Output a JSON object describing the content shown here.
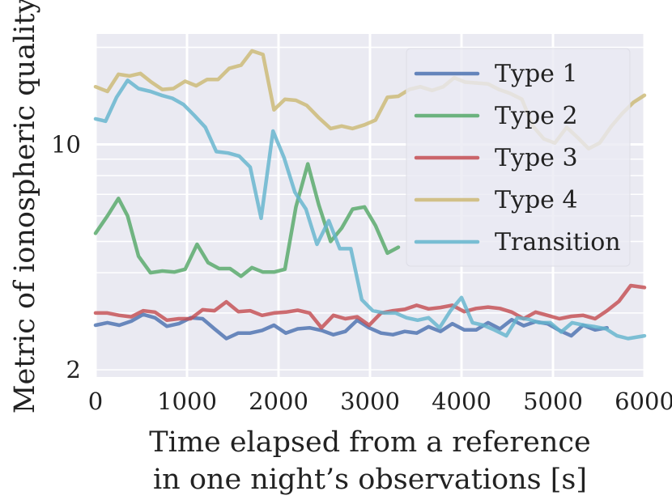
{
  "chart_data": {
    "type": "line",
    "xlabel_lines": [
      "Time elapsed from a reference",
      "in one night’s observations [s]"
    ],
    "ylabel": "Metric of ionospheric quality",
    "xlim": [
      0,
      6000
    ],
    "ylim": [
      1.9,
      22
    ],
    "yscale": "log",
    "x_ticks": [
      0,
      1000,
      2000,
      3000,
      4000,
      5000,
      6000
    ],
    "x_tick_labels": [
      "0",
      "1000",
      "2000",
      "3000",
      "4000",
      "5000",
      "6000"
    ],
    "y_ticks": [
      2,
      10
    ],
    "y_tick_labels": [
      "2",
      "10"
    ],
    "grid": true,
    "legend_position": "top-right",
    "series": [
      {
        "name": "Type 1",
        "color": "#4C72B0",
        "x": [
          0,
          130,
          260,
          390,
          520,
          650,
          780,
          910,
          1040,
          1170,
          1300,
          1430,
          1560,
          1690,
          1820,
          1950,
          2080,
          2210,
          2340,
          2470,
          2600,
          2730,
          2860,
          2990,
          3120,
          3250,
          3380,
          3510,
          3640,
          3770,
          3900,
          4030,
          4160,
          4290,
          4420,
          4550,
          4680,
          4810,
          4940,
          5070,
          5200,
          5330,
          5460,
          5590
        ],
        "y": [
          2.75,
          2.8,
          2.75,
          2.83,
          2.97,
          2.9,
          2.73,
          2.78,
          2.9,
          2.88,
          2.68,
          2.5,
          2.6,
          2.6,
          2.65,
          2.75,
          2.6,
          2.68,
          2.7,
          2.65,
          2.57,
          2.63,
          2.85,
          2.7,
          2.6,
          2.57,
          2.63,
          2.6,
          2.72,
          2.63,
          2.78,
          2.66,
          2.66,
          2.8,
          2.68,
          2.86,
          2.74,
          2.82,
          2.78,
          2.65,
          2.55,
          2.75,
          2.66,
          2.7
        ]
      },
      {
        "name": "Type 2",
        "color": "#55A868",
        "x": [
          0,
          130,
          250,
          350,
          470,
          600,
          730,
          860,
          980,
          1110,
          1230,
          1350,
          1470,
          1590,
          1710,
          1830,
          1950,
          2070,
          2190,
          2320,
          2440,
          2570,
          2690,
          2810,
          2940,
          3060,
          3190,
          3310
        ],
        "y": [
          5.3,
          6.0,
          6.8,
          6.0,
          4.5,
          4.0,
          4.05,
          4.02,
          4.1,
          4.9,
          4.3,
          4.12,
          4.12,
          3.9,
          4.15,
          4.02,
          4.02,
          4.1,
          6.4,
          8.7,
          6.5,
          5.0,
          5.5,
          6.3,
          6.4,
          5.6,
          4.6,
          4.8
        ]
      },
      {
        "name": "Type 3",
        "color": "#C44E52",
        "x": [
          0,
          130,
          260,
          390,
          520,
          650,
          780,
          910,
          1040,
          1170,
          1300,
          1430,
          1560,
          1690,
          1820,
          1950,
          2080,
          2210,
          2340,
          2470,
          2600,
          2730,
          2860,
          2990,
          3120,
          3250,
          3380,
          3510,
          3640,
          3770,
          3900,
          4030,
          4160,
          4290,
          4420,
          4550,
          4680,
          4810,
          4940,
          5070,
          5200,
          5330,
          5460,
          5590,
          5720,
          5850,
          6000
        ],
        "y": [
          3.0,
          3.0,
          2.95,
          2.92,
          3.05,
          3.02,
          2.85,
          2.88,
          2.88,
          3.07,
          3.05,
          3.25,
          3.03,
          3.05,
          2.95,
          3.0,
          3.02,
          3.06,
          3.0,
          2.7,
          2.95,
          2.88,
          2.92,
          2.75,
          3.0,
          3.05,
          3.08,
          3.17,
          3.09,
          3.12,
          3.17,
          3.03,
          3.1,
          3.13,
          3.1,
          3.02,
          2.88,
          3.02,
          2.95,
          2.88,
          2.93,
          2.95,
          2.88,
          3.05,
          3.26,
          3.65,
          3.6
        ]
      },
      {
        "name": "Type 4",
        "color": "#CCB974",
        "x": [
          0,
          130,
          250,
          370,
          490,
          610,
          730,
          850,
          980,
          1100,
          1220,
          1340,
          1460,
          1590,
          1710,
          1830,
          1950,
          2070,
          2190,
          2310,
          2440,
          2570,
          2690,
          2810,
          2940,
          3060,
          3190,
          3310,
          3430,
          3550,
          3680,
          3800,
          3920,
          4040,
          4170,
          4290,
          4410,
          4530,
          4660,
          4780,
          4900,
          5020,
          5150,
          5270,
          5390,
          5510,
          5640,
          5760,
          5880,
          6000
        ],
        "y": [
          15.1,
          14.6,
          16.5,
          16.3,
          16.6,
          15.6,
          14.8,
          14.9,
          15.7,
          15.2,
          15.9,
          15.9,
          17.2,
          17.6,
          19.5,
          19.0,
          12.8,
          13.8,
          13.7,
          13.2,
          12.1,
          11.2,
          11.4,
          11.2,
          11.5,
          11.9,
          14.0,
          14.1,
          14.8,
          15.1,
          14.7,
          15.1,
          16.1,
          15.6,
          15.5,
          15.4,
          14.8,
          14.4,
          13.8,
          11.4,
          10.4,
          10.1,
          11.3,
          10.5,
          9.7,
          10.1,
          11.4,
          12.5,
          13.5,
          14.2
        ]
      },
      {
        "name": "Transition",
        "color": "#64B5CD",
        "x": [
          0,
          110,
          230,
          350,
          470,
          600,
          720,
          840,
          960,
          1080,
          1200,
          1320,
          1450,
          1570,
          1690,
          1810,
          1940,
          2060,
          2180,
          2300,
          2420,
          2550,
          2670,
          2790,
          2910,
          3030,
          3160,
          3280,
          3400,
          3520,
          3640,
          3760,
          3880,
          4000,
          4120,
          4240,
          4360,
          4490,
          4610,
          4730,
          4850,
          4970,
          5090,
          5210,
          5340,
          5460,
          5580,
          5700,
          5820,
          6000
        ],
        "y": [
          12.0,
          11.8,
          14.0,
          15.8,
          14.9,
          14.6,
          14.2,
          13.9,
          13.3,
          12.3,
          11.3,
          9.5,
          9.4,
          9.2,
          8.5,
          5.9,
          11.0,
          9.1,
          7.1,
          6.3,
          4.9,
          5.8,
          4.75,
          4.75,
          3.3,
          3.05,
          3.0,
          3.0,
          2.9,
          2.85,
          2.9,
          2.7,
          3.05,
          3.35,
          2.8,
          2.75,
          2.66,
          2.55,
          2.9,
          2.87,
          2.8,
          2.8,
          2.62,
          2.8,
          2.75,
          2.72,
          2.68,
          2.55,
          2.5,
          2.55
        ]
      }
    ]
  }
}
